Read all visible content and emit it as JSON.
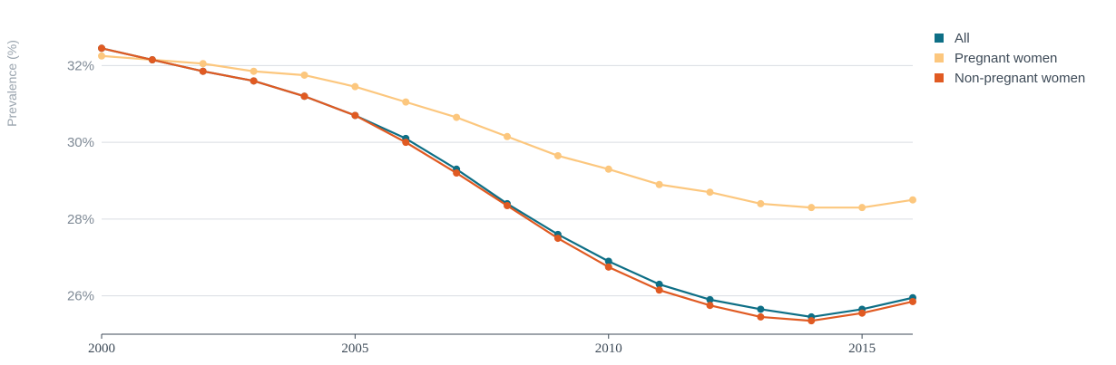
{
  "chart_data": {
    "type": "line",
    "title": "",
    "xlabel": "",
    "ylabel": "Prevalence (%)",
    "x": [
      2000,
      2001,
      2002,
      2003,
      2004,
      2005,
      2006,
      2007,
      2008,
      2009,
      2010,
      2011,
      2012,
      2013,
      2014,
      2015,
      2016
    ],
    "xlim": [
      2000,
      2016
    ],
    "ylim": [
      25,
      33
    ],
    "x_ticks": [
      2000,
      2005,
      2010,
      2015
    ],
    "x_tick_labels": [
      "2000",
      "2005",
      "2010",
      "2015"
    ],
    "y_ticks": [
      26,
      28,
      30,
      32
    ],
    "y_tick_labels": [
      "26%",
      "28%",
      "30%",
      "32%"
    ],
    "grid": "horizontal",
    "legend_position": "top-right",
    "series": [
      {
        "name": "All",
        "color": "#0e6f86",
        "values": [
          32.45,
          32.15,
          31.85,
          31.6,
          31.2,
          30.7,
          30.1,
          29.3,
          28.4,
          27.6,
          26.9,
          26.3,
          25.9,
          25.65,
          25.45,
          25.65,
          25.95
        ]
      },
      {
        "name": "Pregnant women",
        "color": "#fcc77e",
        "values": [
          32.25,
          32.15,
          32.05,
          31.85,
          31.75,
          31.45,
          31.05,
          30.65,
          30.15,
          29.65,
          29.3,
          28.9,
          28.7,
          28.4,
          28.3,
          28.3,
          28.5
        ]
      },
      {
        "name": "Non-pregnant women",
        "color": "#e05a22",
        "values": [
          32.45,
          32.15,
          31.85,
          31.6,
          31.2,
          30.7,
          30.0,
          29.2,
          28.35,
          27.5,
          26.75,
          26.15,
          25.75,
          25.45,
          25.35,
          25.55,
          25.85
        ]
      }
    ]
  }
}
